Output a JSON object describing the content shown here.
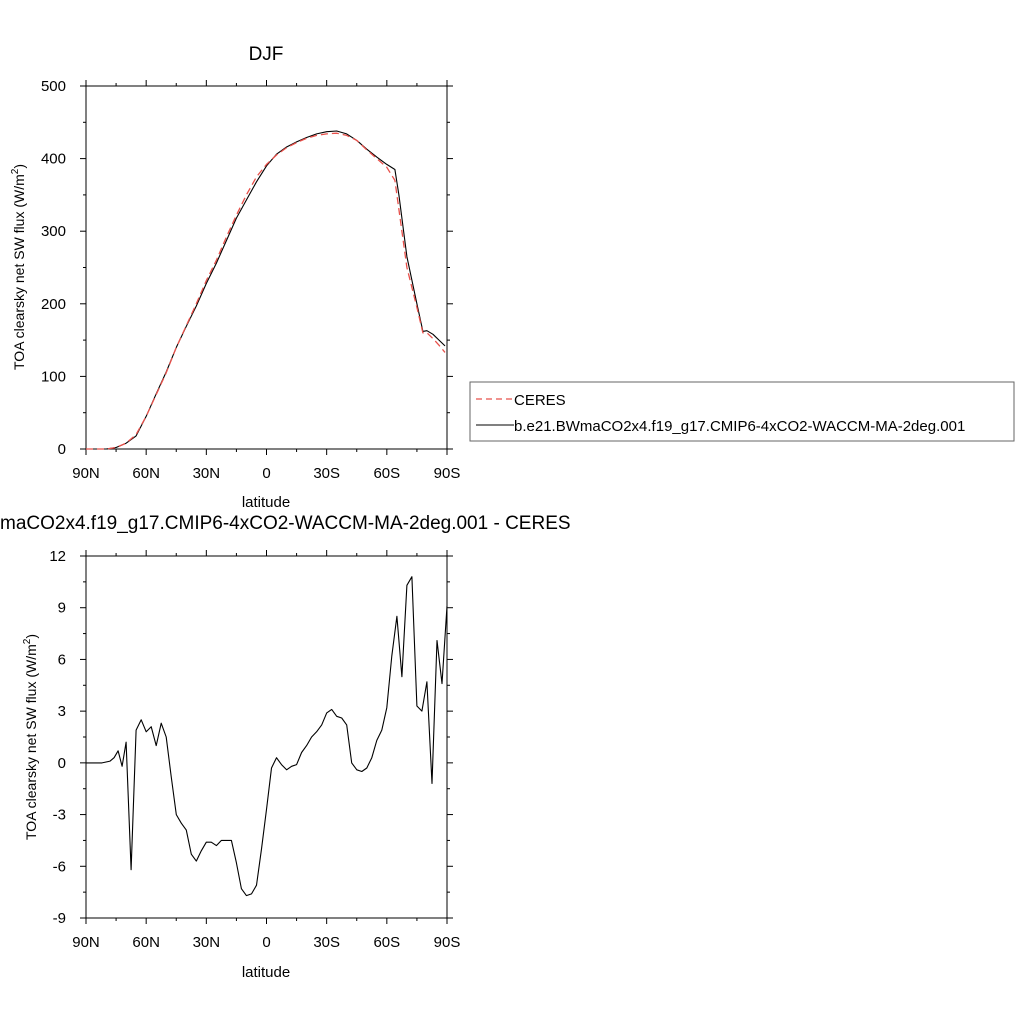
{
  "colors": {
    "ceres": "#e8504a",
    "model": "#000000",
    "axis": "#000000"
  },
  "legend": {
    "placement": "right",
    "entries": [
      {
        "label": "CERES",
        "style": "dashed",
        "color": "#e8504a"
      },
      {
        "label": "b.e21.BWmaCO2x4.f19_g17.CMIP6-4xCO2-WACCM-MA-2deg.001",
        "style": "solid",
        "color": "#000000"
      }
    ]
  },
  "chart_data": [
    {
      "type": "line",
      "title": "DJF",
      "xlabel": "latitude",
      "ylabel_main": "TOA clearsky net SW flux (W/m",
      "ylabel_sup": "2",
      "ylabel_tail": ")",
      "xlim": [
        90,
        -90
      ],
      "ylim": [
        0,
        500
      ],
      "xticks": [
        90,
        60,
        30,
        0,
        -30,
        -60,
        -90
      ],
      "xtick_labels": [
        "90N",
        "60N",
        "30N",
        "0",
        "30S",
        "60S",
        "90S"
      ],
      "yticks": [
        0,
        100,
        200,
        300,
        400,
        500
      ],
      "ytick_labels": [
        "0",
        "100",
        "200",
        "300",
        "400",
        "500"
      ],
      "grid": false,
      "series": [
        {
          "name": "CERES",
          "style": "dashed",
          "color": "#e8504a",
          "x": [
            90,
            85,
            80,
            75,
            70,
            65,
            60,
            55,
            50,
            45,
            40,
            35,
            30,
            25,
            20,
            15,
            10,
            5,
            0,
            -5,
            -10,
            -15,
            -20,
            -25,
            -30,
            -35,
            -40,
            -45,
            -50,
            -55,
            -60,
            -64,
            -66,
            -70,
            -75,
            -78,
            -80,
            -83,
            -86,
            -89
          ],
          "y": [
            0,
            0,
            0,
            2,
            8,
            20,
            45,
            75,
            105,
            140,
            170,
            200,
            232,
            260,
            292,
            322,
            350,
            375,
            392,
            405,
            415,
            422,
            428,
            432,
            434,
            435,
            432,
            425,
            412,
            400,
            388,
            370,
            330,
            250,
            195,
            160,
            160,
            152,
            143,
            133
          ]
        },
        {
          "name": "b.e21.BWmaCO2x4.f19_g17.CMIP6-4xCO2-WACCM-MA-2deg.001",
          "style": "solid",
          "color": "#000000",
          "x": [
            90,
            85,
            80,
            75,
            70,
            65,
            60,
            55,
            50,
            45,
            40,
            35,
            30,
            25,
            20,
            15,
            10,
            5,
            0,
            -5,
            -10,
            -15,
            -20,
            -25,
            -30,
            -35,
            -40,
            -45,
            -50,
            -55,
            -60,
            -64,
            -66,
            -70,
            -75,
            -78,
            -80,
            -83,
            -86,
            -89
          ],
          "y": [
            0,
            0,
            0,
            2,
            8,
            18,
            45,
            76,
            106,
            140,
            169,
            197,
            228,
            256,
            287,
            318,
            343,
            368,
            390,
            406,
            416,
            423,
            429,
            434,
            437,
            438,
            434,
            425,
            413,
            402,
            392,
            385,
            350,
            265,
            200,
            162,
            163,
            158,
            150,
            142
          ]
        }
      ]
    },
    {
      "type": "line",
      "title": "maCO2x4.f19_g17.CMIP6-4xCO2-WACCM-MA-2deg.001 - CERES",
      "xlabel": "latitude",
      "ylabel_main": "TOA clearsky net SW flux (W/m",
      "ylabel_sup": "2",
      "ylabel_tail": ")",
      "xlim": [
        90,
        -90
      ],
      "ylim": [
        -9,
        12
      ],
      "xticks": [
        90,
        60,
        30,
        0,
        -30,
        -60,
        -90
      ],
      "xtick_labels": [
        "90N",
        "60N",
        "30N",
        "0",
        "30S",
        "60S",
        "90S"
      ],
      "yticks": [
        -9,
        -6,
        -3,
        0,
        3,
        6,
        9,
        12
      ],
      "ytick_labels": [
        "-9",
        "-6",
        "-3",
        "0",
        "3",
        "6",
        "9",
        "12"
      ],
      "grid": false,
      "series": [
        {
          "style": "solid",
          "color": "#000000",
          "x": [
            90,
            86,
            82,
            78,
            76,
            74,
            72,
            70,
            67.5,
            65,
            62.5,
            60,
            57.5,
            55,
            52.5,
            50,
            47.5,
            45,
            42.5,
            40,
            37.5,
            35,
            32.5,
            30,
            27.5,
            25,
            22.5,
            20,
            17.5,
            15,
            12.5,
            10,
            7.5,
            5,
            2.5,
            0,
            -2.5,
            -5,
            -7.5,
            -10,
            -12.5,
            -15,
            -17.5,
            -20,
            -22.5,
            -25,
            -27.5,
            -30,
            -32.5,
            -35,
            -37.5,
            -40,
            -42.5,
            -45,
            -47.5,
            -50,
            -52.5,
            -55,
            -57.5,
            -60,
            -62.5,
            -65,
            -67.5,
            -70,
            -72.5,
            -75,
            -77.5,
            -80,
            -82.5,
            -85,
            -87.5,
            -90
          ],
          "y": [
            0,
            0,
            0,
            0.1,
            0.3,
            0.7,
            -0.2,
            1.2,
            -6.2,
            1.9,
            2.5,
            1.8,
            2.1,
            1.0,
            2.3,
            1.5,
            -0.8,
            -3.0,
            -3.5,
            -3.9,
            -5.3,
            -5.7,
            -5.1,
            -4.6,
            -4.6,
            -4.8,
            -4.5,
            -4.5,
            -4.5,
            -5.8,
            -7.3,
            -7.7,
            -7.6,
            -7.1,
            -5.0,
            -2.7,
            -0.3,
            0.3,
            -0.1,
            -0.4,
            -0.2,
            -0.1,
            0.6,
            1.0,
            1.5,
            1.8,
            2.2,
            2.9,
            3.1,
            2.7,
            2.6,
            2.2,
            0.0,
            -0.4,
            -0.5,
            -0.3,
            0.3,
            1.3,
            1.9,
            3.2,
            6.2,
            8.5,
            5.0,
            10.3,
            10.8,
            3.3,
            3.0,
            4.7,
            -1.2,
            7.1,
            4.6,
            9.1
          ]
        }
      ]
    }
  ]
}
